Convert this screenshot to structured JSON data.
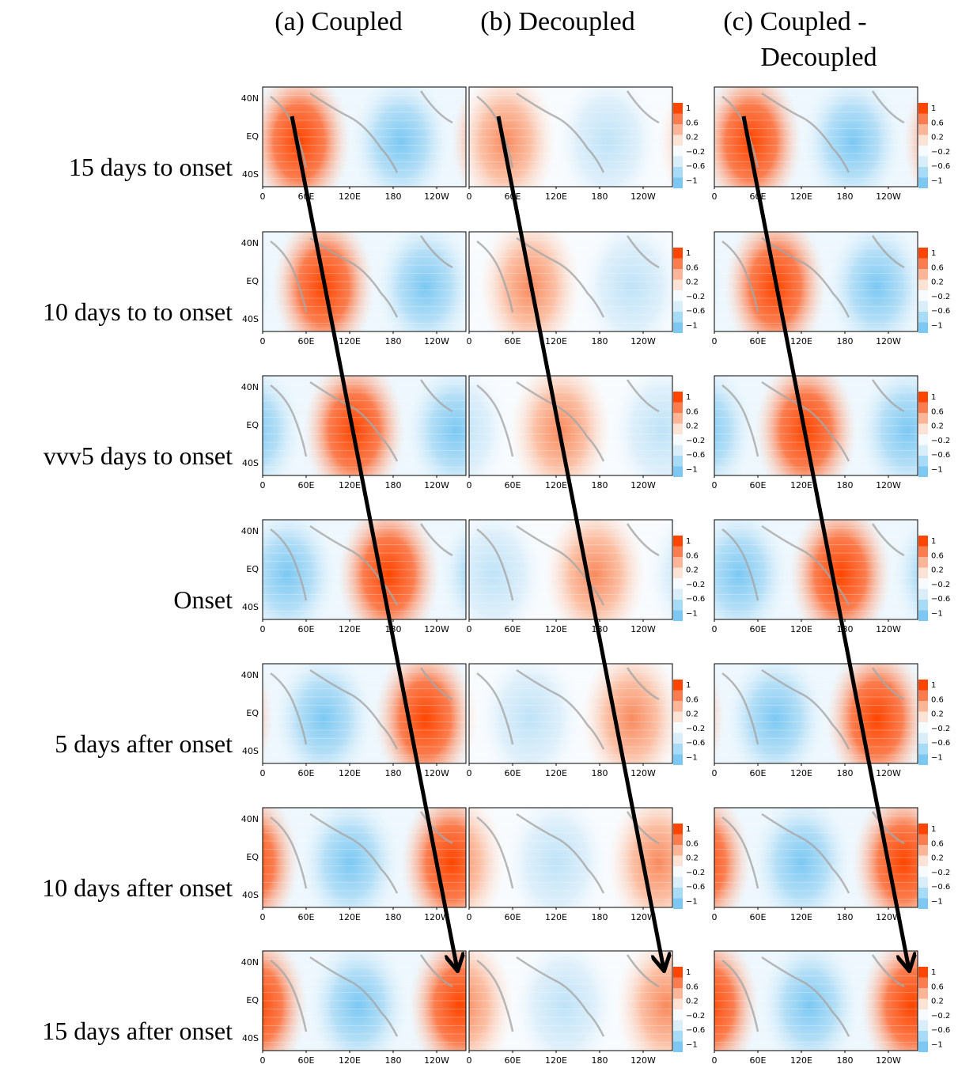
{
  "columns": [
    {
      "title": [
        "(a) Coupled"
      ]
    },
    {
      "title": [
        "(b) Decoupled"
      ]
    },
    {
      "title": [
        "(c) Coupled -",
        "Decoupled"
      ]
    }
  ],
  "rows": [
    {
      "label": "15 days to onset"
    },
    {
      "label": "10 days to to onset"
    },
    {
      "label": "vvv5 days to onset"
    },
    {
      "label": "Onset"
    },
    {
      "label": "5 days after onset"
    },
    {
      "label": "10 days after onset"
    },
    {
      "label": "15 days after onset"
    }
  ],
  "x_tick_labels": [
    "0",
    "60E",
    "120E",
    "180",
    "120W"
  ],
  "y_tick_labels": [
    "40N",
    "EQ",
    "40S"
  ],
  "colorbar_labels": [
    "1",
    "0.6",
    "0.2",
    "−0.2",
    "−0.6",
    "−1"
  ]
}
